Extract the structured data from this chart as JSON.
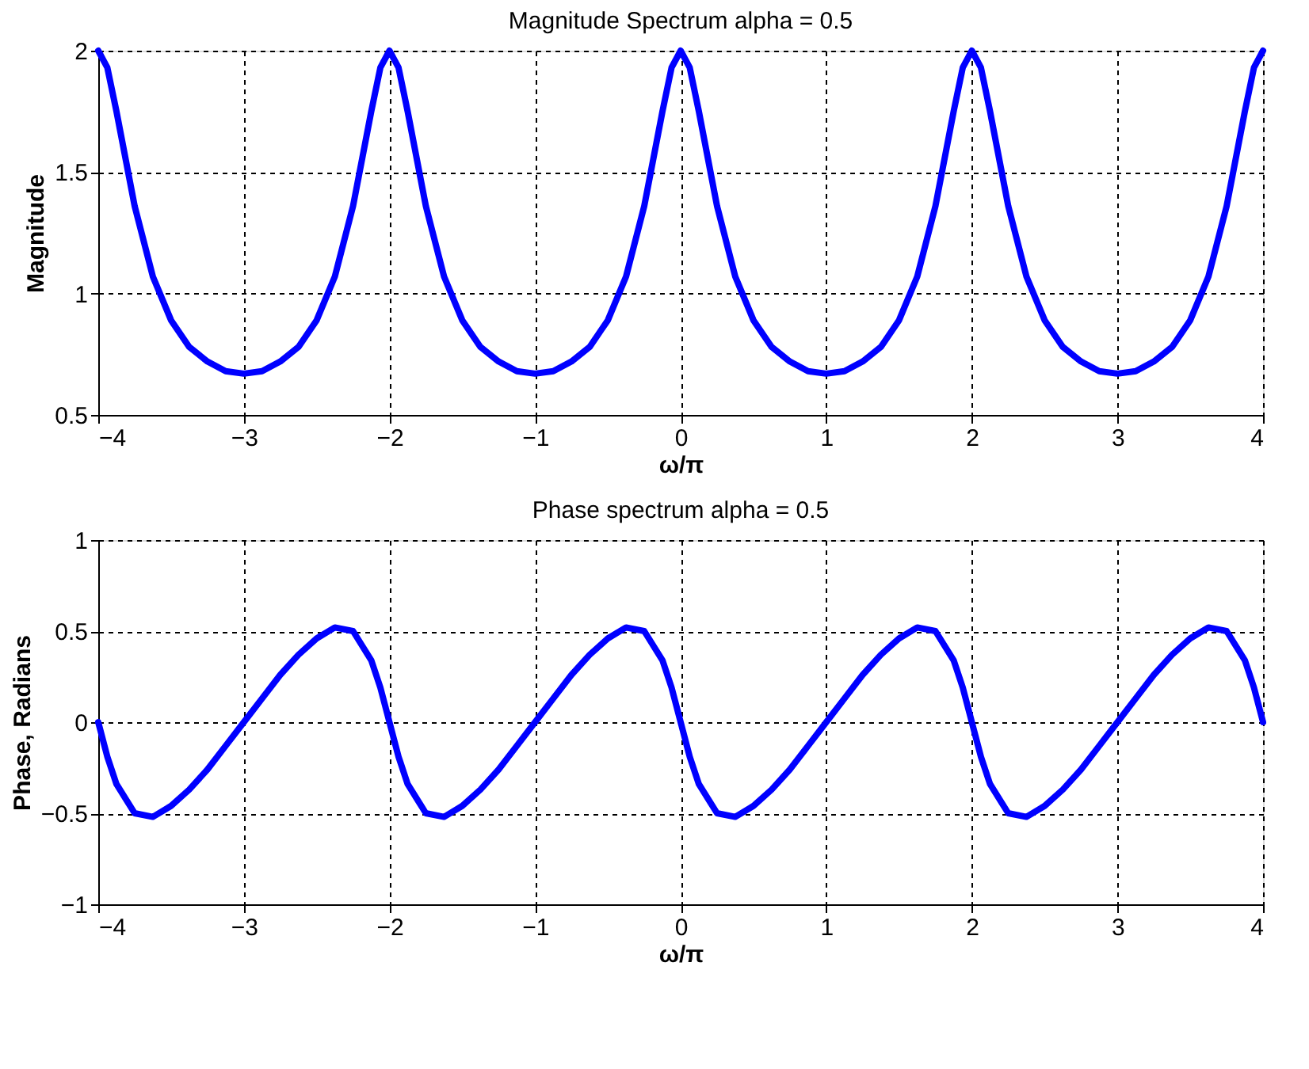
{
  "chart_data": [
    {
      "type": "line",
      "title": "Magnitude Spectrum alpha = 0.5",
      "xlabel": "ω/π",
      "ylabel": "Magnitude",
      "x": [
        -4,
        -3.9375,
        -3.875,
        -3.75,
        -3.625,
        -3.5,
        -3.375,
        -3.25,
        -3.125,
        -3,
        -2.875,
        -2.75,
        -2.625,
        -2.5,
        -2.375,
        -2.25,
        -2.125,
        -2.0625,
        -2,
        -1.9375,
        -1.875,
        -1.75,
        -1.625,
        -1.5,
        -1.375,
        -1.25,
        -1.125,
        -1,
        -0.875,
        -0.75,
        -0.625,
        -0.5,
        -0.375,
        -0.25,
        -0.125,
        -0.0625,
        0,
        0.0625,
        0.125,
        0.25,
        0.375,
        0.5,
        0.625,
        0.75,
        0.875,
        1,
        1.125,
        1.25,
        1.375,
        1.5,
        1.625,
        1.75,
        1.875,
        1.9375,
        2,
        2.0625,
        2.125,
        2.25,
        2.375,
        2.5,
        2.625,
        2.75,
        2.875,
        3,
        3.125,
        3.25,
        3.375,
        3.5,
        3.625,
        3.75,
        3.875,
        3.9375,
        4
      ],
      "series": [
        {
          "color": "#0000ff",
          "values": [
            2,
            1.93,
            1.75,
            1.36,
            1.07,
            0.89,
            0.78,
            0.72,
            0.68,
            0.67,
            0.68,
            0.72,
            0.78,
            0.89,
            1.07,
            1.36,
            1.75,
            1.93,
            2,
            1.93,
            1.75,
            1.36,
            1.07,
            0.89,
            0.78,
            0.72,
            0.68,
            0.67,
            0.68,
            0.72,
            0.78,
            0.89,
            1.07,
            1.36,
            1.75,
            1.93,
            2,
            1.93,
            1.75,
            1.36,
            1.07,
            0.89,
            0.78,
            0.72,
            0.68,
            0.67,
            0.68,
            0.72,
            0.78,
            0.89,
            1.07,
            1.36,
            1.75,
            1.93,
            2,
            1.93,
            1.75,
            1.36,
            1.07,
            0.89,
            0.78,
            0.72,
            0.68,
            0.67,
            0.68,
            0.72,
            0.78,
            0.89,
            1.07,
            1.36,
            1.75,
            1.93,
            2
          ]
        }
      ],
      "xlim": [
        -4,
        4
      ],
      "xticks": [
        -4,
        -3,
        -2,
        -1,
        0,
        1,
        2,
        3,
        4
      ],
      "ylim": [
        0.5,
        2
      ],
      "yticks": [
        0.5,
        1,
        1.5,
        2
      ],
      "grid": true,
      "legend": false,
      "marker": "none",
      "line_style": "solid"
    },
    {
      "type": "line",
      "title": "Phase spectrum alpha = 0.5",
      "xlabel": "ω/π",
      "ylabel": "Phase, Radians",
      "x": [
        -4,
        -3.9375,
        -3.875,
        -3.75,
        -3.625,
        -3.5,
        -3.375,
        -3.25,
        -3.125,
        -3,
        -2.875,
        -2.75,
        -2.625,
        -2.5,
        -2.375,
        -2.25,
        -2.125,
        -2.0625,
        -2,
        -1.9375,
        -1.875,
        -1.75,
        -1.625,
        -1.5,
        -1.375,
        -1.25,
        -1.125,
        -1,
        -0.875,
        -0.75,
        -0.625,
        -0.5,
        -0.375,
        -0.25,
        -0.125,
        -0.0625,
        0,
        0.0625,
        0.125,
        0.25,
        0.375,
        0.5,
        0.625,
        0.75,
        0.875,
        1,
        1.125,
        1.25,
        1.375,
        1.5,
        1.625,
        1.75,
        1.875,
        1.9375,
        2,
        2.0625,
        2.125,
        2.25,
        2.375,
        2.5,
        2.625,
        2.75,
        2.875,
        3,
        3.125,
        3.25,
        3.375,
        3.5,
        3.625,
        3.75,
        3.875,
        3.9375,
        4
      ],
      "series": [
        {
          "color": "#0000ff",
          "values": [
            0,
            -0.19,
            -0.34,
            -0.5,
            -0.52,
            -0.46,
            -0.37,
            -0.26,
            -0.13,
            0,
            0.13,
            0.26,
            0.37,
            0.46,
            0.52,
            0.5,
            0.34,
            0.19,
            0,
            -0.19,
            -0.34,
            -0.5,
            -0.52,
            -0.46,
            -0.37,
            -0.26,
            -0.13,
            0,
            0.13,
            0.26,
            0.37,
            0.46,
            0.52,
            0.5,
            0.34,
            0.19,
            0,
            -0.19,
            -0.34,
            -0.5,
            -0.52,
            -0.46,
            -0.37,
            -0.26,
            -0.13,
            0,
            0.13,
            0.26,
            0.37,
            0.46,
            0.52,
            0.5,
            0.34,
            0.19,
            0,
            -0.19,
            -0.34,
            -0.5,
            -0.52,
            -0.46,
            -0.37,
            -0.26,
            -0.13,
            0,
            0.13,
            0.26,
            0.37,
            0.46,
            0.52,
            0.5,
            0.34,
            0.19,
            0
          ]
        }
      ],
      "xlim": [
        -4,
        4
      ],
      "xticks": [
        -4,
        -3,
        -2,
        -1,
        0,
        1,
        2,
        3,
        4
      ],
      "ylim": [
        -1,
        1
      ],
      "yticks": [
        -1,
        -0.5,
        0,
        0.5,
        1
      ],
      "grid": true,
      "legend": false,
      "marker": "none",
      "line_style": "solid"
    }
  ]
}
